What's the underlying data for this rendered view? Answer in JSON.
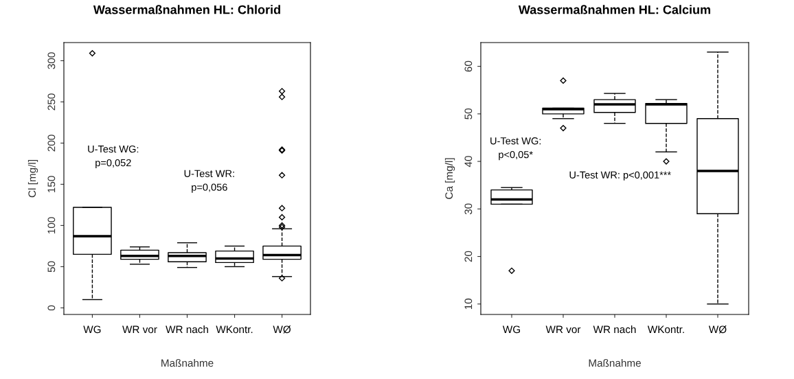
{
  "chart_data": [
    {
      "type": "box",
      "title": "Wassermaßnahmen HL: Chlorid",
      "xlabel": "Maßnahme",
      "ylabel": "Cl [mg/l]",
      "categories": [
        "WG",
        "WR vor",
        "WR nach",
        "WKontr.",
        "WØ"
      ],
      "boxes": [
        {
          "low": 10,
          "q1": 65,
          "median": 87,
          "q3": 122,
          "high": 122,
          "outliers": [
            309
          ]
        },
        {
          "low": 53,
          "q1": 59,
          "median": 63,
          "q3": 70,
          "high": 74
        },
        {
          "low": 49,
          "q1": 56,
          "median": 63,
          "q3": 67,
          "high": 79
        },
        {
          "low": 50,
          "q1": 55,
          "median": 60,
          "q3": 69,
          "high": 75
        },
        {
          "low": 38,
          "q1": 59,
          "median": 64,
          "q3": 75,
          "high": 96,
          "outliers": [
            36,
            98,
            100,
            110,
            121,
            161,
            191,
            192,
            256,
            263
          ]
        }
      ],
      "ylim": [
        -8,
        322
      ],
      "yticks": [
        0,
        50,
        100,
        150,
        200,
        250,
        300
      ],
      "grid": false,
      "marker": "diamond",
      "annotations": [
        "U-Test WG:\np=0,052",
        "U-Test WR:\np=0,056"
      ]
    },
    {
      "type": "box",
      "title": "Wassermaßnahmen HL: Calcium",
      "xlabel": "Maßnahme",
      "ylabel": "Ca [mg/l]",
      "categories": [
        "WG",
        "WR vor",
        "WR nach",
        "WKontr.",
        "WØ"
      ],
      "boxes": [
        {
          "low": 31,
          "q1": 31,
          "median": 32,
          "q3": 34,
          "high": 34.5,
          "outliers": [
            17
          ]
        },
        {
          "low": 49,
          "q1": 50,
          "median": 51,
          "q3": 51.2,
          "high": 51.2,
          "outliers": [
            47,
            57
          ]
        },
        {
          "low": 48,
          "q1": 50.3,
          "median": 52,
          "q3": 53,
          "high": 54.3
        },
        {
          "low": 42,
          "q1": 48,
          "median": 52,
          "q3": 52.2,
          "high": 53,
          "outliers": [
            40
          ]
        },
        {
          "low": 10,
          "q1": 29,
          "median": 38,
          "q3": 49,
          "high": 63
        }
      ],
      "ylim": [
        7.8,
        65
      ],
      "yticks": [
        10,
        20,
        30,
        40,
        50,
        60
      ],
      "grid": false,
      "marker": "diamond",
      "annotations": [
        "U-Test WG:\np<0,05*",
        "U-Test WR: p<0,001***"
      ]
    }
  ]
}
